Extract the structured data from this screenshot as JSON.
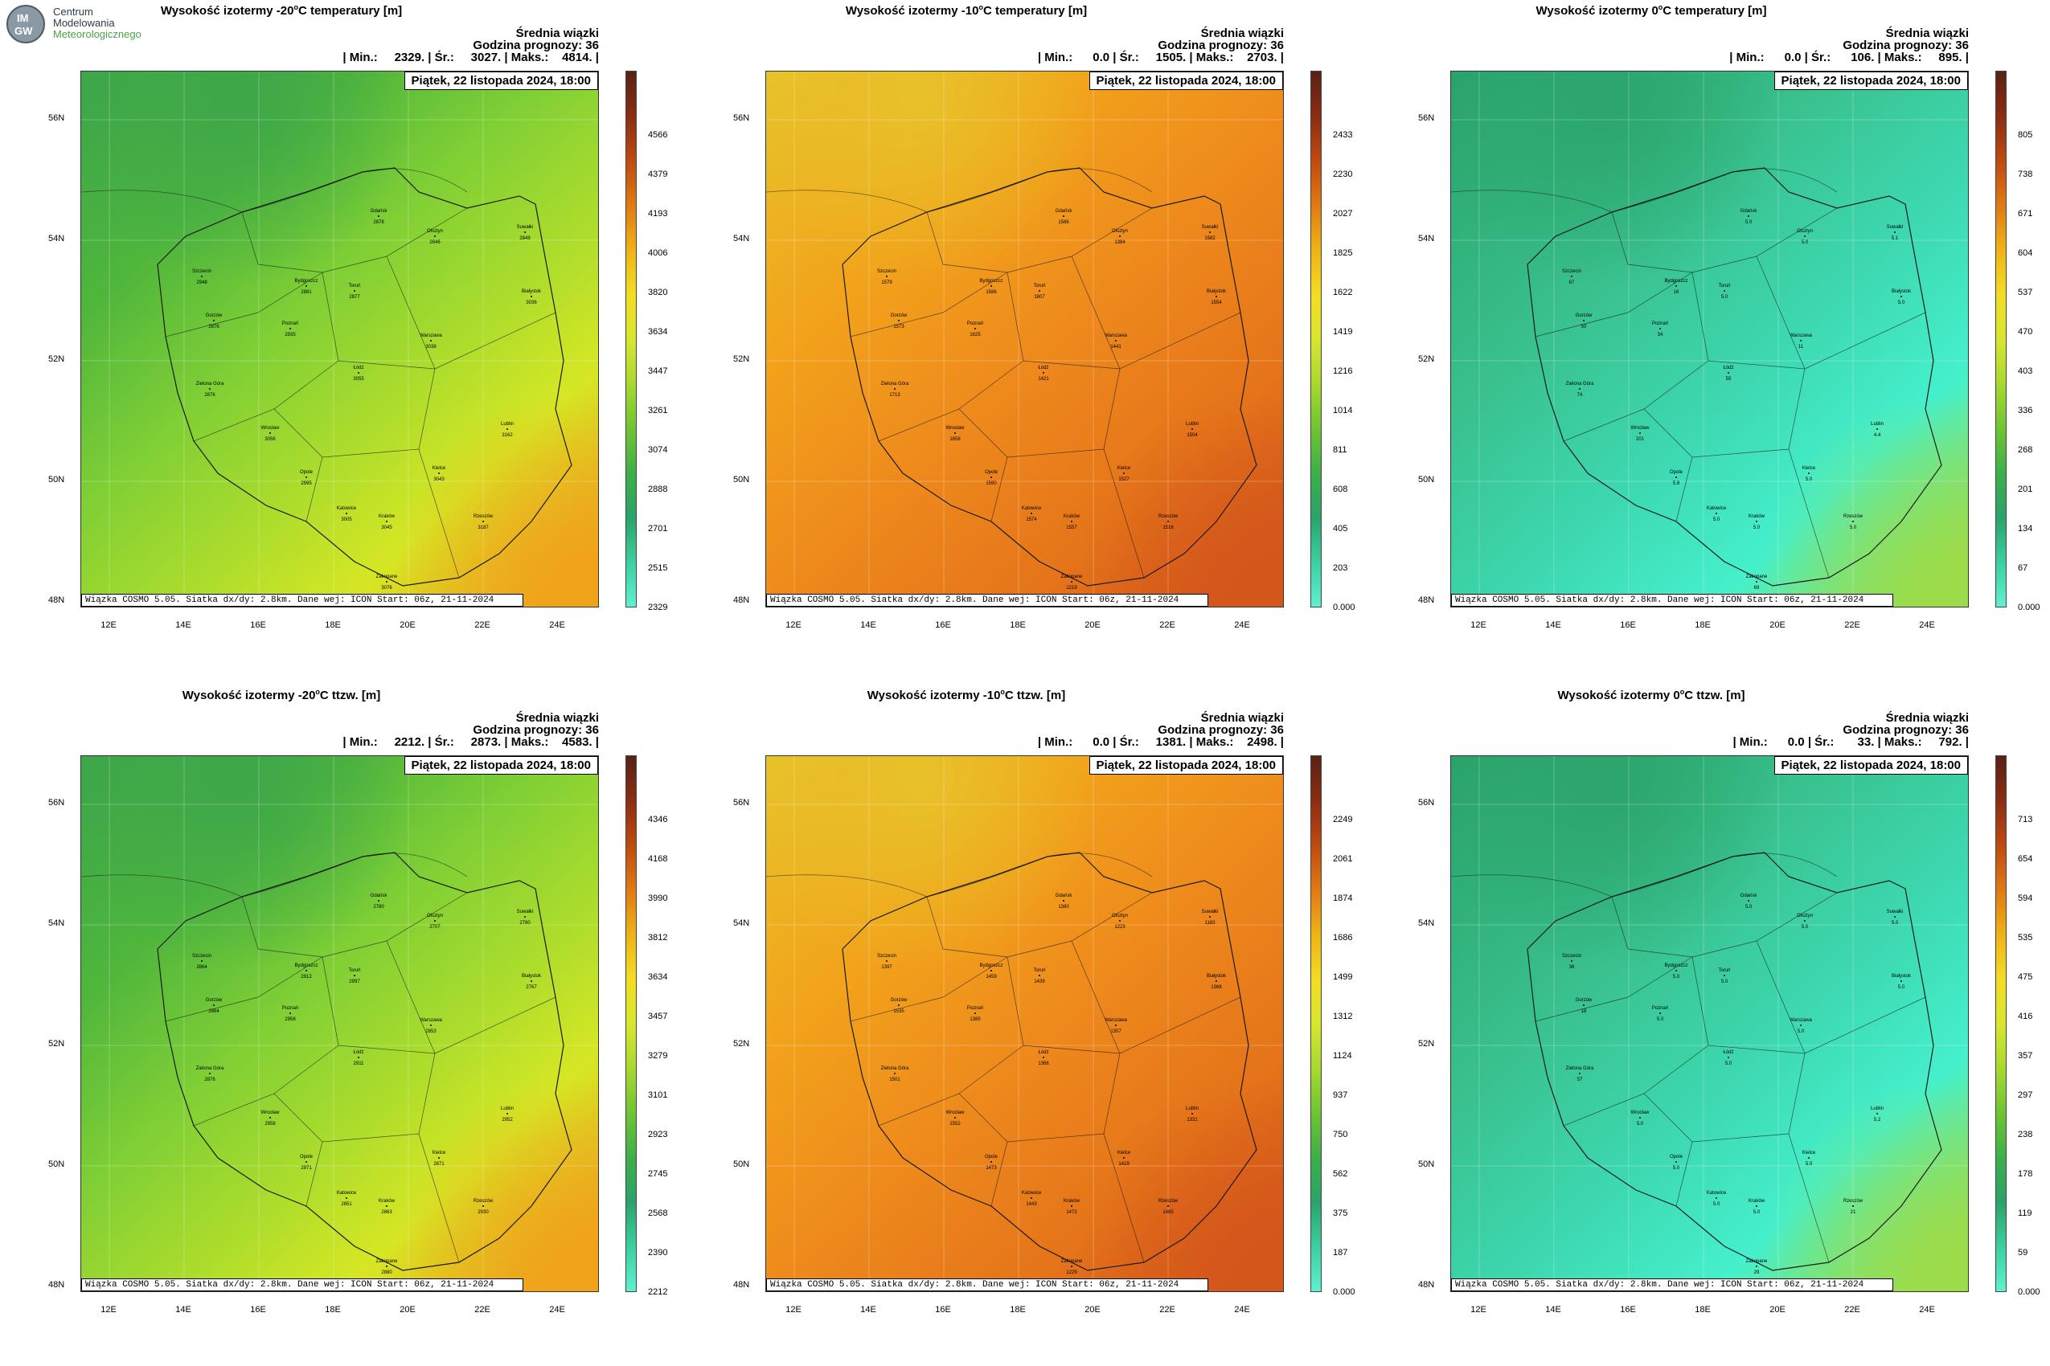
{
  "logo": {
    "line1": "Centrum",
    "line2": "Modelowania",
    "line3": "Meteorologicznego",
    "badge_top": "IM",
    "badge_bottom": "GW"
  },
  "common": {
    "info_title": "Średnia wiązki",
    "forecast_hour": "Godzina prognozy: 36",
    "date": "Piątek, 22 listopada 2024, 18:00",
    "footer": "Wiązka  COSMO 5.05. Siatka dx/dy: 2.8km. Dane wej: ICON Start: 06z, 21-11-2024",
    "lat_labels": [
      "56N",
      "54N",
      "52N",
      "50N",
      "48N"
    ],
    "lon_labels": [
      "12E",
      "14E",
      "16E",
      "18E",
      "20E",
      "22E",
      "24E"
    ]
  },
  "panels": [
    {
      "title_pre": "Wysokość izotermy -20",
      "title_post": "C temperatury [m]",
      "stats": "| Min.:     2329. | Śr.:     3027. | Maks.:    4814. |",
      "scale": [
        "4566",
        "4379",
        "4193",
        "4006",
        "3820",
        "3634",
        "3447",
        "3261",
        "3074",
        "2888",
        "2701",
        "2515",
        "2329"
      ],
      "palette": "green"
    },
    {
      "title_pre": "Wysokość izotermy -10",
      "title_post": "C temperatury [m]",
      "stats": "| Min.:      0.0 | Śr.:     1505. | Maks.:    2703. |",
      "scale": [
        "2433",
        "2230",
        "2027",
        "1825",
        "1622",
        "1419",
        "1216",
        "1014",
        "811",
        "608",
        "405",
        "203",
        "0.000"
      ],
      "palette": "orange"
    },
    {
      "title_pre": "Wysokość izotermy 0",
      "title_post": "C temperatury [m]",
      "stats": "| Min.:      0.0 | Śr.:      106. | Maks.:     895. |",
      "scale": [
        "805",
        "738",
        "671",
        "604",
        "537",
        "470",
        "403",
        "336",
        "268",
        "201",
        "134",
        "67",
        "0.000"
      ],
      "palette": "teal"
    },
    {
      "title_pre": "Wysokość izotermy -20",
      "title_post": "C ttzw. [m]",
      "stats": "| Min.:     2212. | Śr.:     2873. | Maks.:    4583. |",
      "scale": [
        "4346",
        "4168",
        "3990",
        "3812",
        "3634",
        "3457",
        "3279",
        "3101",
        "2923",
        "2745",
        "2568",
        "2390",
        "2212"
      ],
      "palette": "green"
    },
    {
      "title_pre": "Wysokość izotermy -10",
      "title_post": "C ttzw. [m]",
      "stats": "| Min.:      0.0 | Śr.:     1381. | Maks.:    2498. |",
      "scale": [
        "2249",
        "2061",
        "1874",
        "1686",
        "1499",
        "1312",
        "1124",
        "937",
        "750",
        "562",
        "375",
        "187",
        "0.000"
      ],
      "palette": "orange"
    },
    {
      "title_pre": "Wysokość izotermy 0",
      "title_post": "C ttzw. [m]",
      "stats": "| Min.:      0.0 | Śr.:       33. | Maks.:     792. |",
      "scale": [
        "713",
        "654",
        "594",
        "535",
        "475",
        "416",
        "357",
        "297",
        "238",
        "178",
        "119",
        "59",
        "0.000"
      ],
      "palette": "teal"
    }
  ],
  "cities": [
    "Gdańsk",
    "Olsztyn",
    "Suwałki",
    "Szczecin",
    "Bydgoszcz",
    "Toruń",
    "Białystok",
    "Gorzów",
    "Poznań",
    "Warszawa",
    "Zielona Góra",
    "Łódź",
    "Wrocław",
    "Lublin",
    "Opole",
    "Kielce",
    "Katowice",
    "Kraków",
    "Rzeszów",
    "Zakopane"
  ]
}
